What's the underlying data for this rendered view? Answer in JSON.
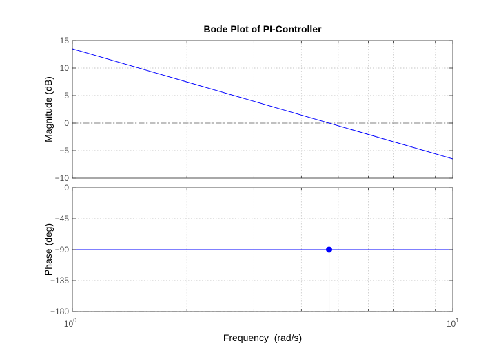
{
  "figure": {
    "title": "Bode Plot of PI-Controller",
    "xlabel": "Frequency  (rad/s)",
    "x_tick_base": "10",
    "x_tick_exponents": [
      "0",
      "1"
    ]
  },
  "chart_data": [
    {
      "name": "magnitude",
      "type": "line",
      "title": "Bode Plot of PI-Controller",
      "xlabel": "Frequency  (rad/s)",
      "ylabel": "Magnitude (dB)",
      "xscale": "log",
      "xlim": [
        1,
        10
      ],
      "ylim": [
        -10,
        15
      ],
      "yticks": [
        15,
        10,
        5,
        0,
        -5,
        -10
      ],
      "grid": true,
      "series": [
        {
          "x": [
            1,
            10
          ],
          "y": [
            13.5,
            -6.5
          ],
          "color": "#0000ff"
        }
      ],
      "reference_lines": [
        {
          "y": 0,
          "style": "dash-dot",
          "color": "#808080"
        }
      ]
    },
    {
      "name": "phase",
      "type": "line",
      "xlabel": "Frequency  (rad/s)",
      "ylabel": "Phase (deg)",
      "xscale": "log",
      "xlim": [
        1,
        10
      ],
      "ylim": [
        -180,
        0
      ],
      "yticks": [
        0,
        -45,
        -90,
        -135,
        -180
      ],
      "grid": true,
      "series": [
        {
          "x": [
            1,
            10
          ],
          "y": [
            -90,
            -90
          ],
          "color": "#0000ff"
        }
      ],
      "reference_lines": [
        {
          "y": -180,
          "style": "dash-dot",
          "color": "#808080"
        }
      ],
      "markers": [
        {
          "x": 4.73,
          "y": -90,
          "color": "#0000ff",
          "stem_to": -180
        }
      ]
    }
  ]
}
